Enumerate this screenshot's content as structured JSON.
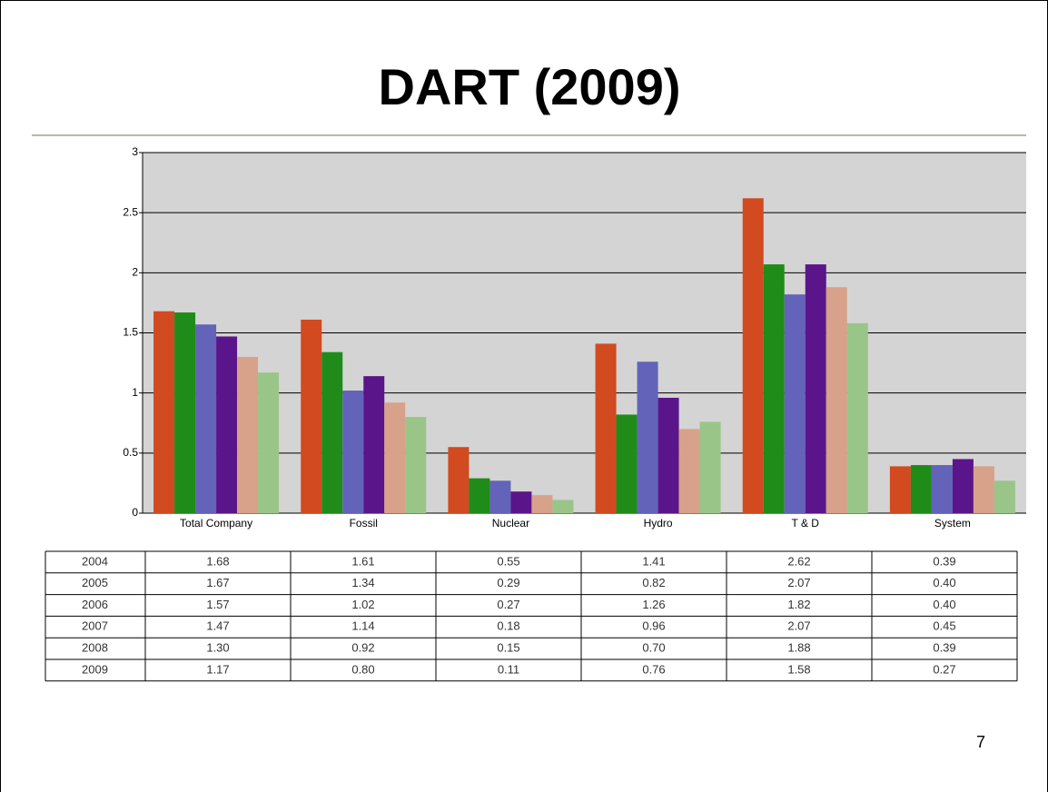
{
  "chart_data": {
    "type": "bar",
    "title": "DART (2009)",
    "categories": [
      "Total Company",
      "Fossil",
      "Nuclear",
      "Hydro",
      "T & D",
      "System"
    ],
    "series": [
      {
        "name": "2004",
        "color": "#d24a1f",
        "values": [
          1.68,
          1.61,
          0.55,
          1.41,
          2.62,
          0.39
        ],
        "value_labels": [
          "1.68",
          "1.61",
          "0.55",
          "1.41",
          "2.62",
          "0.39"
        ]
      },
      {
        "name": "2005",
        "color": "#1f8c1a",
        "values": [
          1.67,
          1.34,
          0.29,
          0.82,
          2.07,
          0.4
        ],
        "value_labels": [
          "1.67",
          "1.34",
          "0.29",
          "0.82",
          "2.07",
          "0.40"
        ]
      },
      {
        "name": "2006",
        "color": "#6363b9",
        "values": [
          1.57,
          1.02,
          0.27,
          1.26,
          1.82,
          0.4
        ],
        "value_labels": [
          "1.57",
          "1.02",
          "0.27",
          "1.26",
          "1.82",
          "0.40"
        ]
      },
      {
        "name": "2007",
        "color": "#5a158a",
        "values": [
          1.47,
          1.14,
          0.18,
          0.96,
          2.07,
          0.45
        ],
        "value_labels": [
          "1.47",
          "1.14",
          "0.18",
          "0.96",
          "2.07",
          "0.45"
        ]
      },
      {
        "name": "2008",
        "color": "#d8a189",
        "values": [
          1.3,
          0.92,
          0.15,
          0.7,
          1.88,
          0.39
        ],
        "value_labels": [
          "1.30",
          "0.92",
          "0.15",
          "0.70",
          "1.88",
          "0.39"
        ]
      },
      {
        "name": "2009",
        "color": "#99c589",
        "values": [
          1.17,
          0.8,
          0.11,
          0.76,
          1.58,
          0.27
        ],
        "value_labels": [
          "1.17",
          "0.80",
          "0.11",
          "0.76",
          "1.58",
          "0.27"
        ]
      }
    ],
    "ylim": [
      0,
      3
    ],
    "yticks": [
      0,
      0.5,
      1,
      1.5,
      2,
      2.5,
      3
    ],
    "grid": true,
    "page_number": "7"
  }
}
